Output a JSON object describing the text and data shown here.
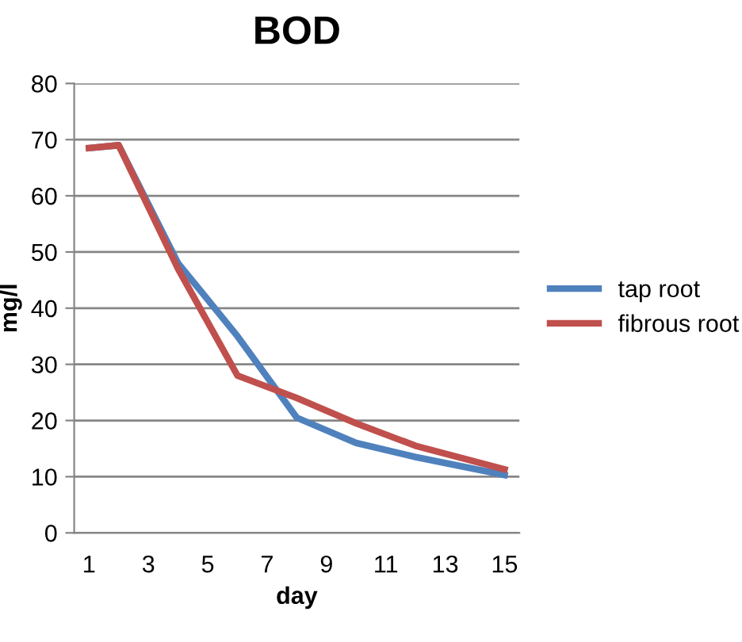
{
  "chart_data": {
    "type": "line",
    "title": "BOD",
    "xlabel": "day",
    "ylabel": "mg/l",
    "x": [
      1,
      2,
      4,
      6,
      8,
      10,
      12,
      15
    ],
    "series": [
      {
        "name": "tap root",
        "color": "#4f81bd",
        "values": [
          68.5,
          69,
          48,
          35,
          20.5,
          16,
          13.5,
          10.3
        ]
      },
      {
        "name": "fibrous root",
        "color": "#c0504d",
        "values": [
          68.5,
          69,
          47,
          28,
          24,
          19.5,
          15.5,
          11.3
        ]
      }
    ],
    "xlim": [
      0.5,
      15.5
    ],
    "xticks": [
      1,
      3,
      5,
      7,
      9,
      11,
      13,
      15
    ],
    "ylim": [
      0,
      80
    ],
    "yticks": [
      0,
      10,
      20,
      30,
      40,
      50,
      60,
      70,
      80
    ],
    "grid": "y",
    "legend": "right",
    "marker": "none",
    "line_style": "solid"
  }
}
